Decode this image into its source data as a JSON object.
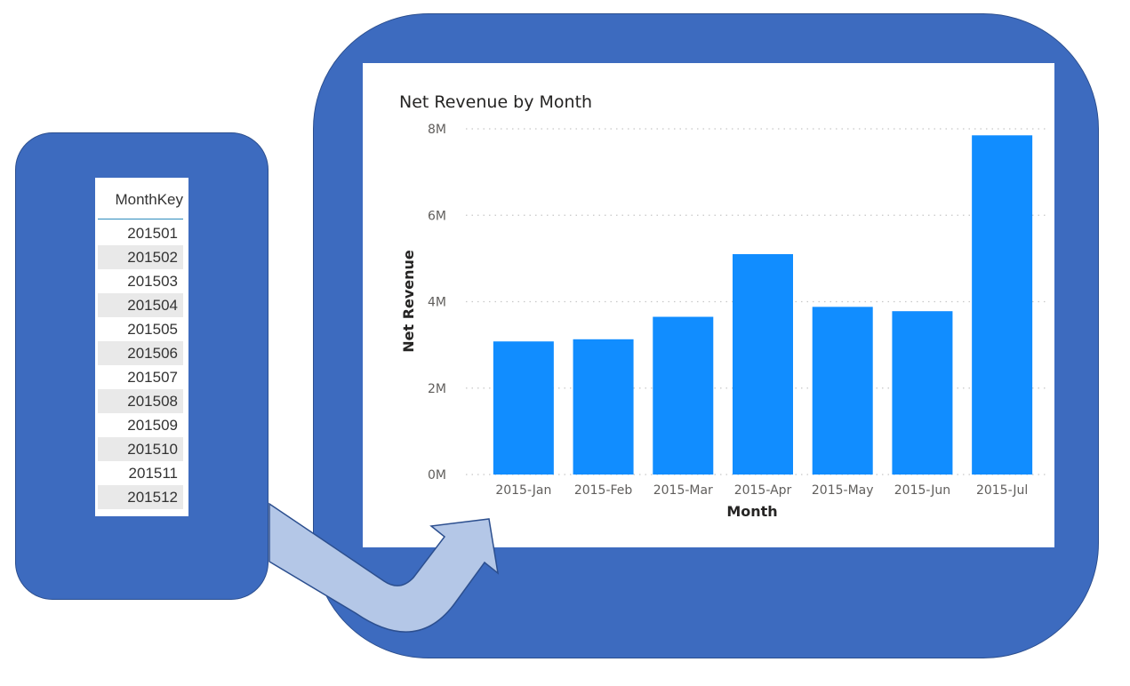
{
  "table": {
    "header": "MonthKey",
    "rows": [
      "201501",
      "201502",
      "201503",
      "201504",
      "201505",
      "201506",
      "201507",
      "201508",
      "201509",
      "201510",
      "201511",
      "201512"
    ]
  },
  "chart_data": {
    "type": "bar",
    "title": "Net Revenue by Month",
    "xlabel": "Month",
    "ylabel": "Net Revenue",
    "categories": [
      "2015-Jan",
      "2015-Feb",
      "2015-Mar",
      "2015-Apr",
      "2015-May",
      "2015-Jun",
      "2015-Jul"
    ],
    "values": [
      3.08,
      3.13,
      3.65,
      5.1,
      3.88,
      3.78,
      7.85
    ],
    "ylim": [
      0,
      8
    ],
    "yticks": [
      0,
      2,
      4,
      6,
      8
    ],
    "ytick_labels": [
      "0M",
      "2M",
      "4M",
      "6M",
      "8M"
    ],
    "grid": true,
    "bar_color": "#118dff"
  },
  "colors": {
    "blob": "#3d6bbf",
    "arrow": "#b4c7e7"
  }
}
